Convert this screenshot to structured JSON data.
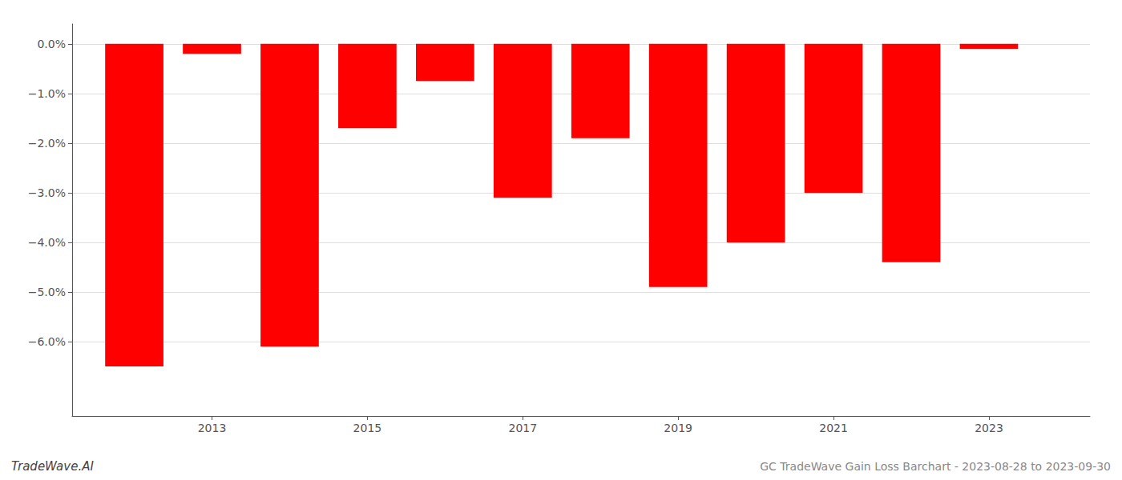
{
  "chart_data": {
    "type": "bar",
    "x": [
      2012,
      2013,
      2014,
      2015,
      2016,
      2017,
      2018,
      2019,
      2020,
      2021,
      2022,
      2023
    ],
    "values": [
      -0.065,
      -0.002,
      -0.061,
      -0.017,
      -0.0075,
      -0.031,
      -0.019,
      -0.049,
      -0.04,
      -0.03,
      -0.044,
      -0.001
    ],
    "color": "#ff0000",
    "xlim": [
      2011.2,
      2024.3
    ],
    "xticks": [
      2013,
      2015,
      2017,
      2019,
      2021,
      2023
    ],
    "ylim": [
      -0.075,
      0.004
    ],
    "yticks": [
      {
        "value": 0.0,
        "label": "0.0%"
      },
      {
        "value": -0.01,
        "label": "−1.0%"
      },
      {
        "value": -0.02,
        "label": "−2.0%"
      },
      {
        "value": -0.03,
        "label": "−3.0%"
      },
      {
        "value": -0.04,
        "label": "−4.0%"
      },
      {
        "value": -0.05,
        "label": "−5.0%"
      },
      {
        "value": -0.06,
        "label": "−6.0%"
      }
    ],
    "grid": true,
    "annotations": [
      "TradeWave.AI",
      "GC TradeWave Gain Loss Barchart - 2023-08-28 to 2023-09-30"
    ]
  }
}
